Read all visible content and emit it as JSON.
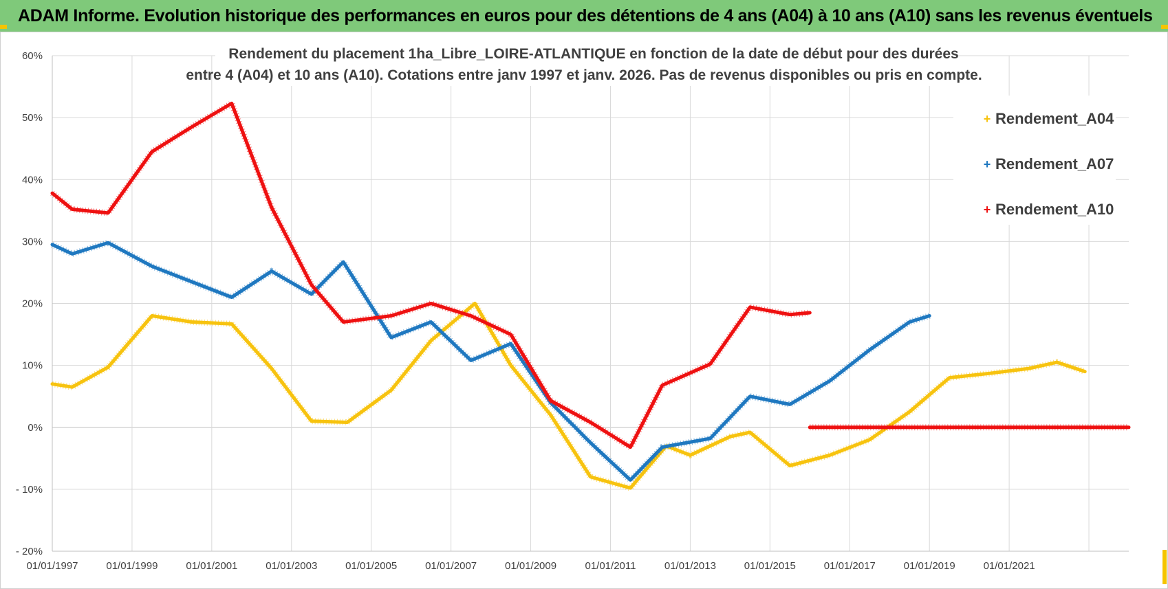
{
  "banner": {
    "title": "ADAM Informe. Evolution historique des performances en euros pour des détentions de 4 ans (A04) à 10 ans (A10) sans les revenus éventuels"
  },
  "colors": {
    "banner": "#7fc97a",
    "grid": "#d9d9d9",
    "Rendement_A04": "#f7c30f",
    "Rendement_A07": "#1f78c0",
    "Rendement_A10": "#ee1111"
  },
  "chart_data": {
    "type": "line",
    "title_line1": "Rendement du placement 1ha_Libre_LOIRE-ATLANTIQUE en fonction de la date de début pour des durées",
    "title_line2": "entre 4 (A04) et 10 ans (A10).  Cotations entre janv 1997 et janv. 2026. Pas de revenus disponibles ou pris en compte.",
    "xlabel": "",
    "ylabel": "",
    "xlim": [
      1997.0,
      2024.0
    ],
    "ylim": [
      -20,
      60
    ],
    "y_ticks": [
      {
        "v": 60,
        "label": "60%"
      },
      {
        "v": 50,
        "label": "50%"
      },
      {
        "v": 40,
        "label": "40%"
      },
      {
        "v": 30,
        "label": "30%"
      },
      {
        "v": 20,
        "label": "20%"
      },
      {
        "v": 10,
        "label": "10%"
      },
      {
        "v": 0,
        "label": "0%"
      },
      {
        "v": -10,
        "label": "- 10%"
      },
      {
        "v": -20,
        "label": "- 20%"
      }
    ],
    "x_ticks": [
      {
        "v": 1997,
        "label": "01/01/1997"
      },
      {
        "v": 1999,
        "label": "01/01/1999"
      },
      {
        "v": 2001,
        "label": "01/01/2001"
      },
      {
        "v": 2003,
        "label": "01/01/2003"
      },
      {
        "v": 2005,
        "label": "01/01/2005"
      },
      {
        "v": 2007,
        "label": "01/01/2007"
      },
      {
        "v": 2009,
        "label": "01/01/2009"
      },
      {
        "v": 2011,
        "label": "01/01/2011"
      },
      {
        "v": 2013,
        "label": "01/01/2013"
      },
      {
        "v": 2015,
        "label": "01/01/2015"
      },
      {
        "v": 2017,
        "label": "01/01/2017"
      },
      {
        "v": 2019,
        "label": "01/01/2019"
      },
      {
        "v": 2021,
        "label": "01/01/2021"
      }
    ],
    "x_grid": [
      1997,
      1999,
      2001,
      2003,
      2005,
      2007,
      2009,
      2011,
      2013,
      2015,
      2017,
      2019,
      2021,
      2023
    ],
    "legend_position": "top-right",
    "series": [
      {
        "name": "Rendement_A04",
        "x": [
          1997.0,
          1997.5,
          1998.4,
          1999.5,
          2000.5,
          2001.5,
          2002.5,
          2003.5,
          2004.4,
          2005.5,
          2006.5,
          2007.6,
          2008.5,
          2009.5,
          2010.5,
          2011.5,
          2012.0,
          2012.4,
          2013.0,
          2014.0,
          2014.5,
          2015.5,
          2016.5,
          2017.5,
          2018.5,
          2019.5,
          2020.5,
          2021.5,
          2022.2,
          2022.9
        ],
        "values": [
          7,
          6.5,
          9.7,
          18,
          17,
          16.7,
          9.5,
          1,
          0.8,
          6,
          14,
          20,
          10,
          2,
          -8,
          -9.8,
          -6,
          -3,
          -4.5,
          -1.5,
          -0.8,
          -6.2,
          -4.5,
          -2,
          2.5,
          8,
          8.7,
          9.5,
          10.5,
          9
        ],
        "marker": "+"
      },
      {
        "name": "Rendement_A07",
        "x": [
          1997.0,
          1997.5,
          1998.4,
          1999.5,
          2000.5,
          2001.5,
          2002.5,
          2003.5,
          2004.3,
          2005.5,
          2006.5,
          2007.5,
          2008.5,
          2009.5,
          2010.5,
          2011.5,
          2012.3,
          2013.5,
          2014.5,
          2015.5,
          2016.5,
          2017.5,
          2018.5,
          2019.0
        ],
        "values": [
          29.5,
          28,
          29.8,
          26,
          23.5,
          21,
          25.2,
          21.5,
          26.7,
          14.5,
          17,
          10.8,
          13.5,
          4,
          -2.5,
          -8.5,
          -3.2,
          -1.8,
          5,
          3.7,
          7.5,
          12.5,
          17,
          18
        ],
        "marker": "+"
      },
      {
        "name": "Rendement_A10",
        "x": [
          1997.0,
          1997.5,
          1998.4,
          1999.5,
          2000.5,
          2001.5,
          2002.5,
          2003.5,
          2004.3,
          2005.5,
          2006.5,
          2007.5,
          2008.5,
          2009.5,
          2010.5,
          2011.5,
          2012.3,
          2013.5,
          2014.5,
          2015.5,
          2016.0
        ],
        "values": [
          37.8,
          35.2,
          34.6,
          44.5,
          48.5,
          52.3,
          35.5,
          23,
          17,
          18,
          20,
          18,
          15,
          4.3,
          0.8,
          -3.2,
          6.8,
          10.2,
          19.4,
          18.2,
          18.5
        ],
        "marker": "+"
      },
      {
        "name": "Rendement_A10_flat",
        "legend": false,
        "color_key": "Rendement_A10",
        "x": [
          2016.0,
          2024.0
        ],
        "values": [
          0,
          0
        ],
        "marker": "+"
      }
    ],
    "legend": [
      {
        "label": "Rendement_A04",
        "marker": "+"
      },
      {
        "label": "Rendement_A07",
        "marker": "+"
      },
      {
        "label": "Rendement_A10",
        "marker": "+"
      }
    ]
  }
}
